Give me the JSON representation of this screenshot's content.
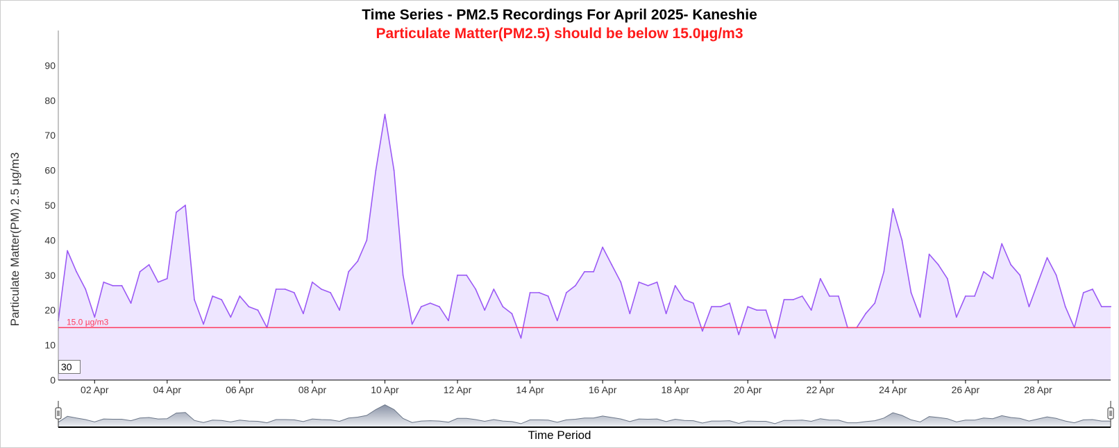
{
  "chart_data": {
    "type": "area",
    "title": "Time Series - PM2.5 Recordings For April 2025- Kaneshie",
    "subtitle": "Particulate Matter(PM2.5) should be below 15.0µg/m3",
    "xlabel": "Time Period",
    "ylabel": "Particulate Matter(PM) 2.5 µg/m3",
    "x_range": [
      "2025-04-01T00:00",
      "2025-04-30T00:00"
    ],
    "ylim": [
      0,
      100
    ],
    "y_ticks": [
      0,
      10,
      20,
      30,
      40,
      50,
      60,
      70,
      80,
      90
    ],
    "x_ticks": [
      "02 Apr",
      "04 Apr",
      "06 Apr",
      "08 Apr",
      "10 Apr",
      "12 Apr",
      "14 Apr",
      "16 Apr",
      "18 Apr",
      "20 Apr",
      "22 Apr",
      "24 Apr",
      "26 Apr",
      "28 Apr"
    ],
    "threshold": {
      "value": 15.0,
      "label": "15.0 µg/m3",
      "color": "#ff3b5c"
    },
    "series_color": "#9b59f5",
    "fill_color": "#eee6ff",
    "grid": false,
    "series": [
      {
        "x": [
          "2025-04-01T00:00",
          "2025-04-01T06:00",
          "2025-04-01T12:00",
          "2025-04-01T18:00",
          "2025-04-02T00:00",
          "2025-04-02T06:00",
          "2025-04-02T12:00",
          "2025-04-02T18:00",
          "2025-04-03T00:00",
          "2025-04-03T06:00",
          "2025-04-03T12:00",
          "2025-04-03T18:00",
          "2025-04-04T00:00",
          "2025-04-04T06:00",
          "2025-04-04T12:00",
          "2025-04-04T18:00",
          "2025-04-05T00:00",
          "2025-04-05T06:00",
          "2025-04-05T12:00",
          "2025-04-05T18:00",
          "2025-04-06T00:00",
          "2025-04-06T06:00",
          "2025-04-06T12:00",
          "2025-04-06T18:00",
          "2025-04-07T00:00",
          "2025-04-07T06:00",
          "2025-04-07T12:00",
          "2025-04-07T18:00",
          "2025-04-08T00:00",
          "2025-04-08T06:00",
          "2025-04-08T12:00",
          "2025-04-08T18:00",
          "2025-04-09T00:00",
          "2025-04-09T06:00",
          "2025-04-09T12:00",
          "2025-04-09T18:00",
          "2025-04-10T00:00",
          "2025-04-10T06:00",
          "2025-04-10T12:00",
          "2025-04-10T18:00",
          "2025-04-11T00:00",
          "2025-04-11T06:00",
          "2025-04-11T12:00",
          "2025-04-11T18:00",
          "2025-04-12T00:00",
          "2025-04-12T06:00",
          "2025-04-12T12:00",
          "2025-04-12T18:00",
          "2025-04-13T00:00",
          "2025-04-13T06:00",
          "2025-04-13T12:00",
          "2025-04-13T18:00",
          "2025-04-14T00:00",
          "2025-04-14T06:00",
          "2025-04-14T12:00",
          "2025-04-14T18:00",
          "2025-04-15T00:00",
          "2025-04-15T06:00",
          "2025-04-15T12:00",
          "2025-04-15T18:00",
          "2025-04-16T00:00",
          "2025-04-16T06:00",
          "2025-04-16T12:00",
          "2025-04-16T18:00",
          "2025-04-17T00:00",
          "2025-04-17T06:00",
          "2025-04-17T12:00",
          "2025-04-17T18:00",
          "2025-04-18T00:00",
          "2025-04-18T06:00",
          "2025-04-18T12:00",
          "2025-04-18T18:00",
          "2025-04-19T00:00",
          "2025-04-19T06:00",
          "2025-04-19T12:00",
          "2025-04-19T18:00",
          "2025-04-20T00:00",
          "2025-04-20T06:00",
          "2025-04-20T12:00",
          "2025-04-20T18:00",
          "2025-04-21T00:00",
          "2025-04-21T06:00",
          "2025-04-21T12:00",
          "2025-04-21T18:00",
          "2025-04-22T00:00",
          "2025-04-22T06:00",
          "2025-04-22T12:00",
          "2025-04-22T18:00",
          "2025-04-23T00:00",
          "2025-04-23T06:00",
          "2025-04-23T12:00",
          "2025-04-23T18:00",
          "2025-04-24T00:00",
          "2025-04-24T06:00",
          "2025-04-24T12:00",
          "2025-04-24T18:00",
          "2025-04-25T00:00",
          "2025-04-25T06:00",
          "2025-04-25T12:00",
          "2025-04-25T18:00",
          "2025-04-26T00:00",
          "2025-04-26T06:00",
          "2025-04-26T12:00",
          "2025-04-26T18:00",
          "2025-04-27T00:00",
          "2025-04-27T06:00",
          "2025-04-27T12:00",
          "2025-04-27T18:00",
          "2025-04-28T00:00",
          "2025-04-28T06:00",
          "2025-04-28T12:00",
          "2025-04-28T18:00",
          "2025-04-29T00:00",
          "2025-04-29T06:00",
          "2025-04-29T12:00",
          "2025-04-29T18:00",
          "2025-04-30T00:00"
        ],
        "values": [
          17,
          37,
          31,
          26,
          18,
          28,
          27,
          27,
          22,
          31,
          33,
          28,
          29,
          48,
          50,
          23,
          16,
          24,
          23,
          18,
          24,
          21,
          20,
          15,
          26,
          26,
          25,
          19,
          28,
          26,
          25,
          20,
          31,
          34,
          40,
          60,
          76,
          60,
          30,
          16,
          21,
          22,
          21,
          17,
          30,
          30,
          26,
          20,
          26,
          21,
          19,
          12,
          25,
          25,
          24,
          17,
          25,
          27,
          31,
          31,
          38,
          33,
          28,
          19,
          28,
          27,
          28,
          19,
          27,
          23,
          22,
          14,
          21,
          21,
          22,
          13,
          21,
          20,
          20,
          12,
          23,
          23,
          24,
          20,
          29,
          24,
          24,
          15,
          15,
          19,
          22,
          31,
          49,
          40,
          25,
          18,
          36,
          33,
          29,
          18,
          24,
          24,
          31,
          29,
          39,
          33,
          30,
          21,
          28,
          35,
          30,
          21,
          15,
          25,
          26,
          21,
          21
        ]
      }
    ]
  },
  "controls": {
    "period_value": "30"
  }
}
